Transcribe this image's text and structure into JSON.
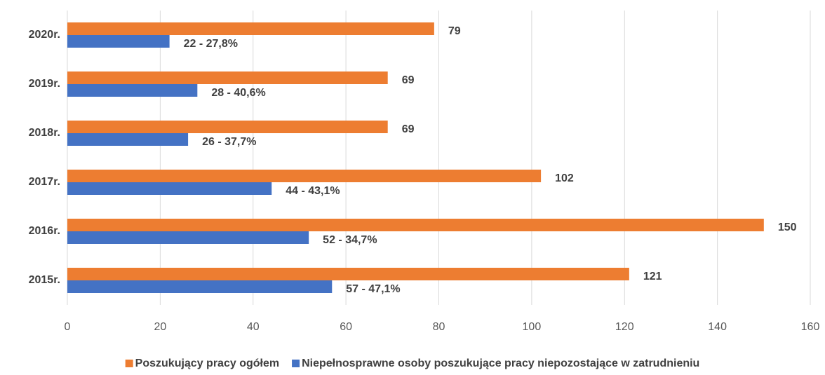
{
  "chart_data": {
    "type": "barh",
    "categories": [
      "2015r.",
      "2016r.",
      "2017r.",
      "2018r.",
      "2019r.",
      "2020r."
    ],
    "series": [
      {
        "name": "Poszukujący pracy ogółem",
        "color": "#ed7d31",
        "values": [
          121,
          150,
          102,
          69,
          69,
          79
        ]
      },
      {
        "name": "Niepełnosprawne osoby poszukujące pracy niepozostające w zatrudnieniu",
        "color": "#4472c4",
        "values": [
          57,
          52,
          44,
          26,
          28,
          22
        ],
        "value_labels": [
          "57 - 47,1%",
          "52 - 34,7%",
          "44 - 43,1%",
          "26 - 37,7%",
          "28 - 40,6%",
          "22 - 27,8%"
        ]
      }
    ],
    "xlim": [
      0,
      160
    ],
    "xticks": [
      0,
      20,
      40,
      60,
      80,
      100,
      120,
      140,
      160
    ],
    "grid": true,
    "legend": "bottom"
  }
}
